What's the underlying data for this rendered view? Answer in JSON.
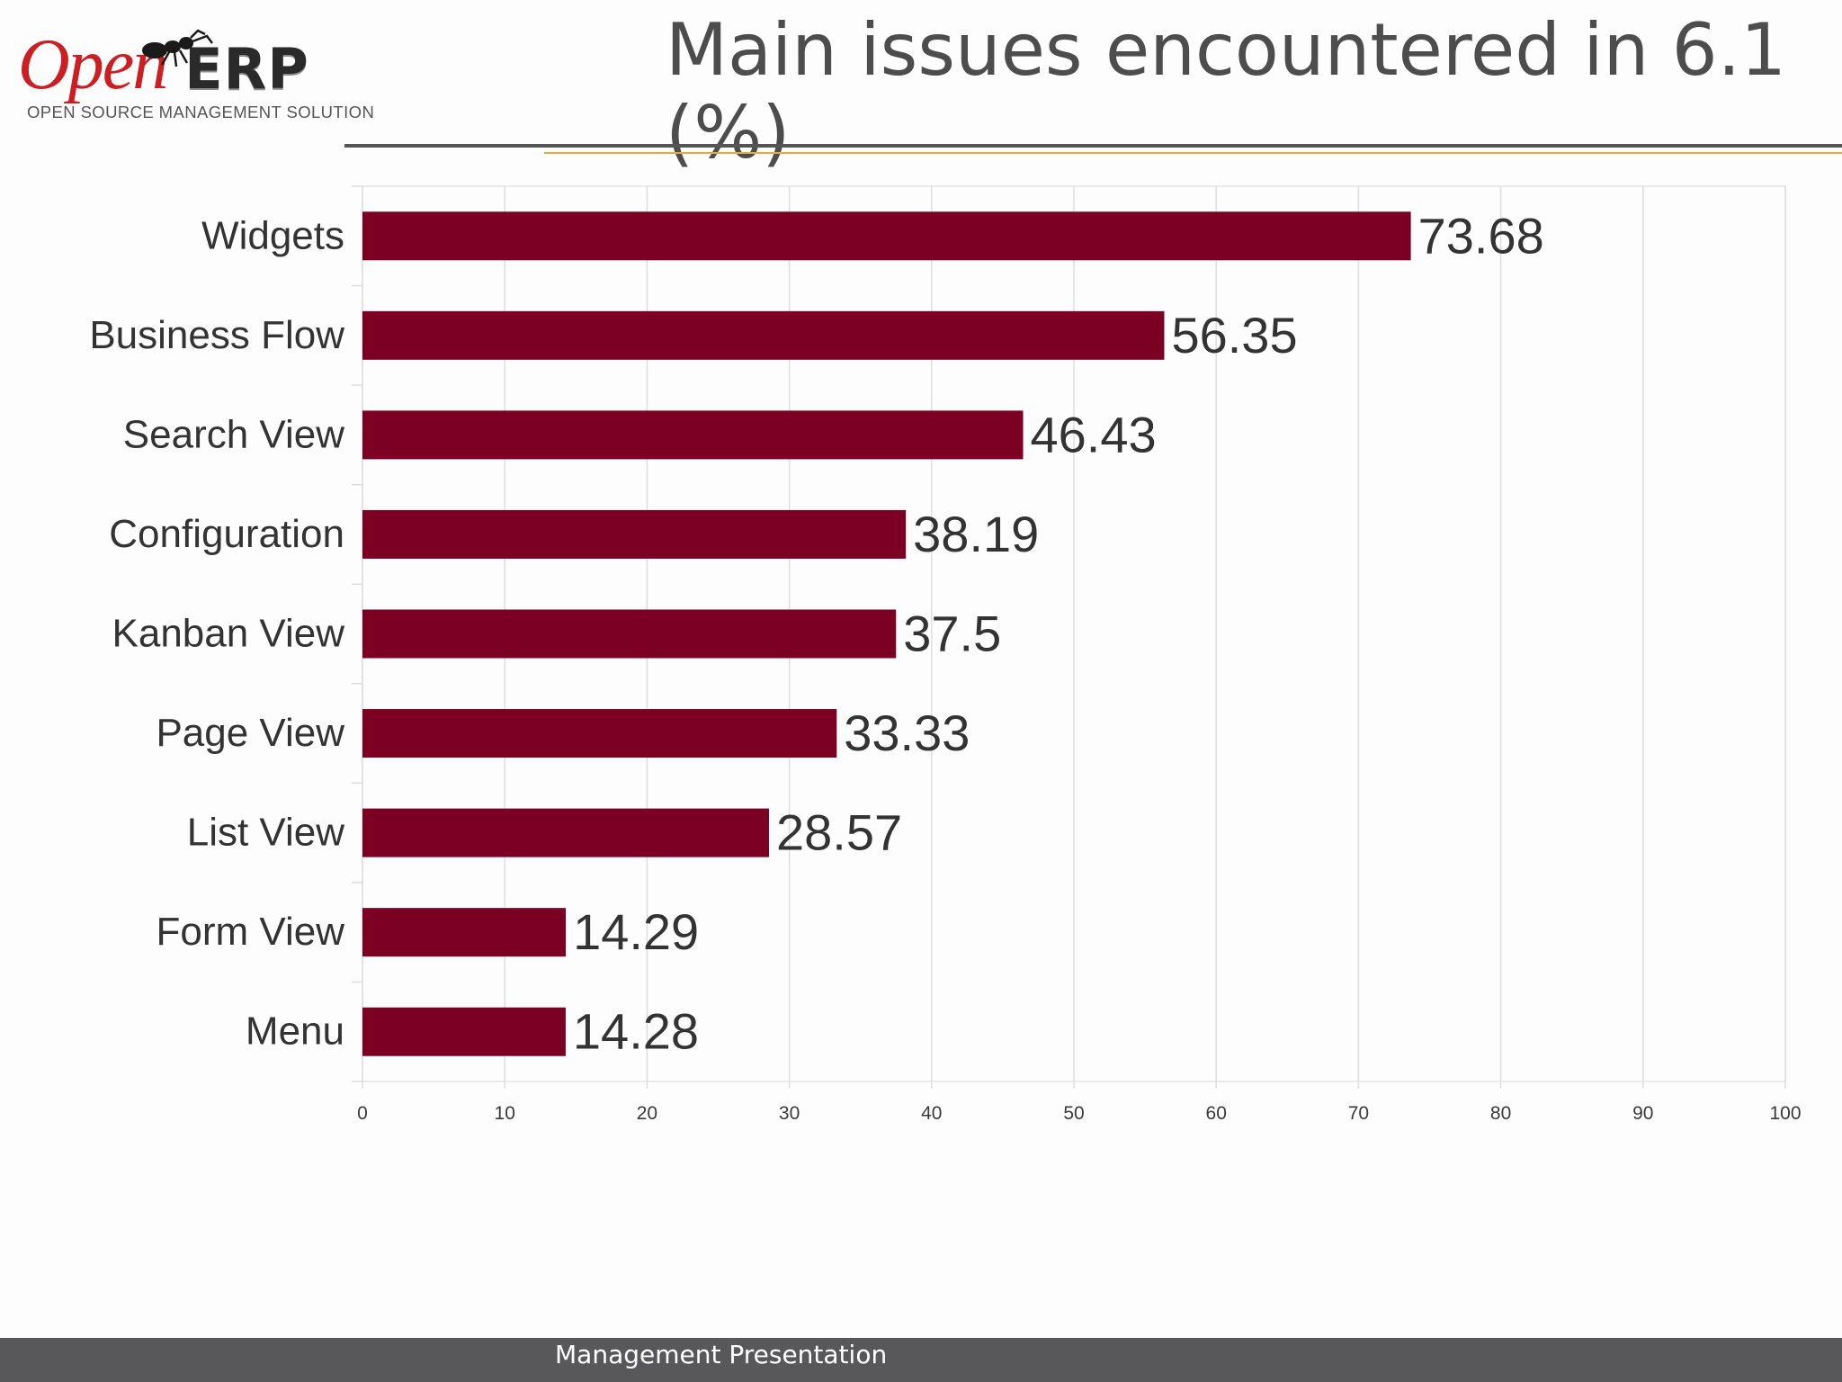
{
  "logo": {
    "word_open": "Open",
    "word_erp": "ERP",
    "tagline": "OPEN SOURCE MANAGEMENT SOLUTION"
  },
  "title": "Main issues encountered in 6.1 (%)",
  "footer": "Management Presentation",
  "colors": {
    "bar": "#7b0023",
    "title": "#4d4d4d",
    "footer_bg": "#58585a",
    "accent_gold": "#f0a830"
  },
  "chart_data": {
    "type": "bar",
    "orientation": "horizontal",
    "categories": [
      "Widgets",
      "Business Flow",
      "Search View",
      "Configuration",
      "Kanban View",
      "Page View",
      "List View",
      "Form View",
      "Menu"
    ],
    "values": [
      73.68,
      56.35,
      46.43,
      38.19,
      37.5,
      33.33,
      28.57,
      14.29,
      14.28
    ],
    "value_labels": [
      "73.68",
      "56.35",
      "46.43",
      "38.19",
      "37.5",
      "33.33",
      "28.57",
      "14.29",
      "14.28"
    ],
    "xlim": [
      0,
      100
    ],
    "xticks": [
      "0",
      "10",
      "20",
      "30",
      "40",
      "50",
      "60",
      "70",
      "80",
      "90",
      "100"
    ],
    "grid": true,
    "legend": "none"
  }
}
